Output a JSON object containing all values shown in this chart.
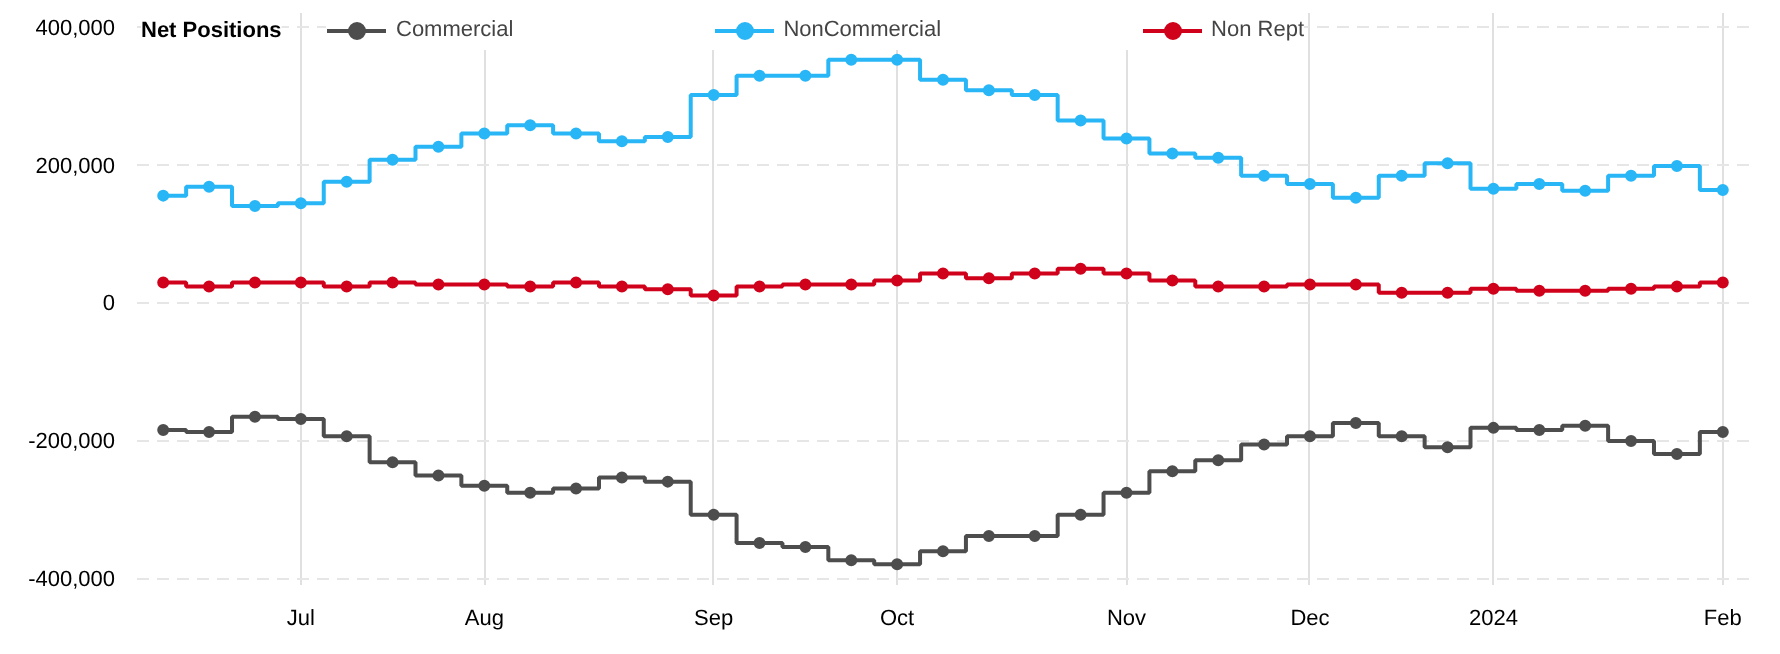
{
  "chart_data": {
    "type": "step",
    "legend_title": "Net Positions",
    "x": [
      "2023-06-13",
      "2023-06-20",
      "2023-06-27",
      "2023-07-04",
      "2023-07-11",
      "2023-07-18",
      "2023-07-25",
      "2023-08-01",
      "2023-08-08",
      "2023-08-15",
      "2023-08-22",
      "2023-08-29",
      "2023-09-05",
      "2023-09-12",
      "2023-09-19",
      "2023-09-26",
      "2023-10-03",
      "2023-10-10",
      "2023-10-17",
      "2023-10-24",
      "2023-10-31",
      "2023-11-07",
      "2023-11-14",
      "2023-11-21",
      "2023-11-28",
      "2023-12-05",
      "2023-12-12",
      "2023-12-19",
      "2023-12-26",
      "2024-01-02",
      "2024-01-09",
      "2024-01-16",
      "2024-01-23",
      "2024-01-30",
      "2024-02-06"
    ],
    "series": [
      {
        "name": "Commercial",
        "color": "#4d4d4d",
        "values": [
          -185000,
          -188000,
          -166000,
          -169000,
          -194000,
          -232000,
          -251000,
          -266000,
          -276000,
          -270000,
          -254000,
          -260000,
          -308000,
          -349000,
          -355000,
          -374000,
          -380000,
          -361000,
          -339000,
          -339000,
          -308000,
          -276000,
          -245000,
          -229000,
          -206000,
          -194000,
          -175000,
          -194000,
          -210000,
          -182000,
          -185000,
          -179000,
          -201000,
          -220000,
          -188000
        ]
      },
      {
        "name": "NonCommercial",
        "color": "#29b6f6",
        "values": [
          155000,
          168000,
          140000,
          144000,
          175000,
          207000,
          226000,
          245000,
          257000,
          245000,
          234000,
          240000,
          301000,
          329000,
          329000,
          352000,
          352000,
          323000,
          308000,
          301000,
          264000,
          238000,
          216000,
          210000,
          184000,
          172000,
          152000,
          184000,
          202000,
          165000,
          172000,
          162000,
          184000,
          198000,
          163000
        ]
      },
      {
        "name": "Non Rept",
        "color": "#d0021b",
        "values": [
          29000,
          23000,
          29000,
          29000,
          23000,
          29000,
          26000,
          26000,
          23000,
          29000,
          23000,
          19000,
          10000,
          23000,
          26000,
          26000,
          32000,
          42000,
          35000,
          42000,
          49000,
          42000,
          32000,
          23000,
          23000,
          26000,
          26000,
          14000,
          14000,
          20000,
          17000,
          17000,
          20000,
          23000,
          29000
        ]
      }
    ],
    "xlim": [
      "2023-06-09",
      "2024-02-10"
    ],
    "xticks": [
      {
        "value": "2023-07-04",
        "label": "Jul"
      },
      {
        "value": "2023-08-01",
        "label": "Aug"
      },
      {
        "value": "2023-09-05",
        "label": "Sep"
      },
      {
        "value": "2023-10-03",
        "label": "Oct"
      },
      {
        "value": "2023-11-07",
        "label": "Nov"
      },
      {
        "value": "2023-12-05",
        "label": "Dec"
      },
      {
        "value": "2024-01-02",
        "label": "2024"
      },
      {
        "value": "2024-02-06",
        "label": "Feb"
      }
    ],
    "ylim": [
      -410000,
      420000
    ],
    "yticks": [
      {
        "value": -400000,
        "label": "-400,000"
      },
      {
        "value": -200000,
        "label": "-200,000"
      },
      {
        "value": 0,
        "label": "0"
      },
      {
        "value": 200000,
        "label": "200,000"
      },
      {
        "value": 400000,
        "label": "400,000"
      }
    ],
    "grid": true,
    "legend": "top",
    "marker": "circle",
    "line_style": "solid"
  }
}
